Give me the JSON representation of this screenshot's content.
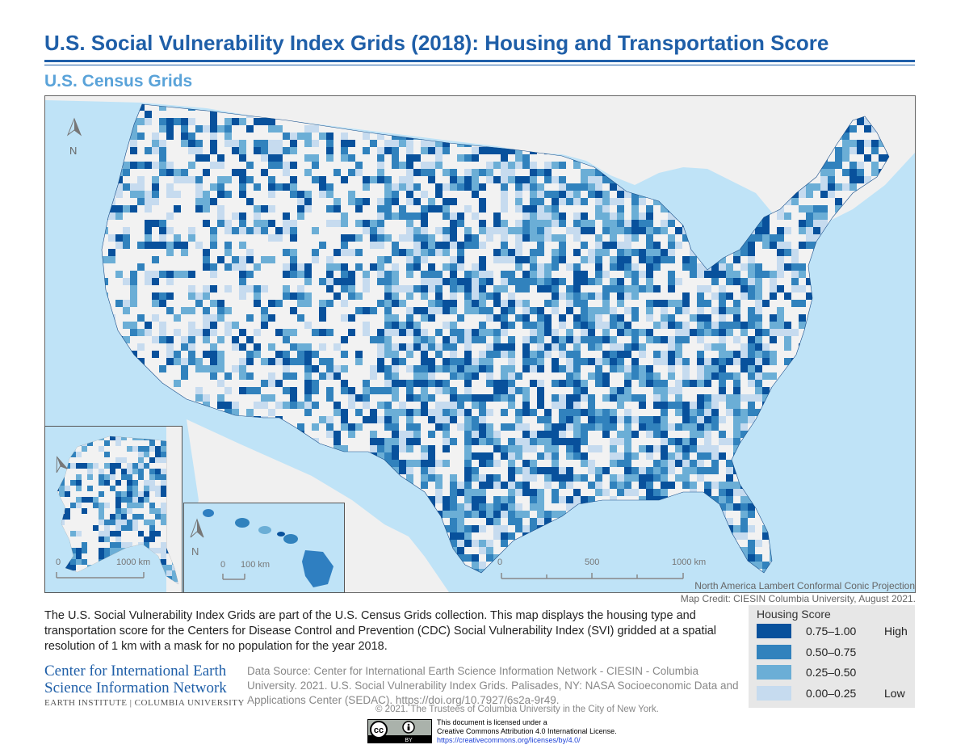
{
  "title": "U.S. Social Vulnerability Index Grids (2018): Housing and Transportation Score",
  "subtitle": "U.S. Census Grids",
  "map": {
    "north_label": "N",
    "scale_main": {
      "zero": "0",
      "mid": "500",
      "max": "1000 km"
    },
    "scale_alaska": {
      "zero": "0",
      "max": "1000 km"
    },
    "scale_hawaii": {
      "zero": "0",
      "max": "100 km"
    },
    "projection": "North America Lambert Conformal Conic Projection",
    "credit": "Map Credit: CIESIN Columbia University, August 2021."
  },
  "description": "The U.S. Social Vulnerability Index Grids are part of the U.S. Census Grids collection. This map displays the housing type and transportation score for the Centers for Disease Control and Prevention (CDC) Social Vulnerability Index (SVI) gridded at a spatial resolution of 1 km with a mask for no population for the year 2018.",
  "org": {
    "line1": "Center for International Earth",
    "line2": "Science Information Network",
    "line3": "EARTH INSTITUTE | COLUMBIA UNIVERSITY"
  },
  "data_source": "Data Source: Center for International Earth Science Information Network - CIESIN - Columbia University. 2021. U.S. Social Vulnerability Index Grids. Palisades, NY: NASA Socioeconomic Data and Applications Center (SEDAC). https://doi.org/10.7927/6s2a-9r49.",
  "copyright": "© 2021. The Trustees of Columbia University in the City of New York.",
  "license": {
    "line1": "This document is licensed under a",
    "line2": "Creative Commons Attribution 4.0 International License.",
    "url": "https://creativecommons.org/licenses/by/4.0/",
    "badge_cc": "cc",
    "badge_by": "BY"
  },
  "legend": {
    "title": "Housing Score",
    "high": "High",
    "low": "Low",
    "items": [
      {
        "label": "0.75–1.00",
        "color": "#08519c"
      },
      {
        "label": "0.50–0.75",
        "color": "#3182bd"
      },
      {
        "label": "0.25–0.50",
        "color": "#6baed6"
      },
      {
        "label": "0.00–0.25",
        "color": "#c6dbef"
      }
    ]
  },
  "colors": {
    "water": "#bfe3f7",
    "land_outside": "#f0f0f0",
    "no_population": "#f2f2f2",
    "title_blue": "#1f5fa8"
  }
}
